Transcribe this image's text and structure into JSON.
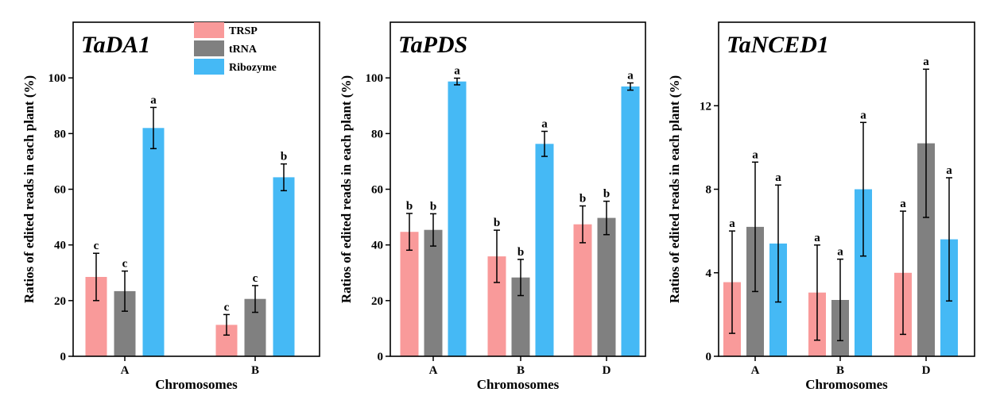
{
  "chart_data": [
    {
      "type": "bar",
      "title": "TaDA1",
      "xlabel": "Chromosomes",
      "ylabel": "Ratios of edited reads  in each plant (%)",
      "ylim": [
        0,
        120
      ],
      "yticks": [
        0,
        20,
        40,
        60,
        80,
        100
      ],
      "categories": [
        "A",
        "B"
      ],
      "legend": "top-right",
      "series": [
        {
          "name": "TRSP",
          "values": [
            28.5,
            11.3
          ],
          "errors": [
            8.5,
            3.7
          ],
          "labels": [
            "c",
            "c"
          ]
        },
        {
          "name": "tRNA",
          "values": [
            23.4,
            20.6
          ],
          "errors": [
            7.2,
            4.8
          ],
          "labels": [
            "c",
            "c"
          ]
        },
        {
          "name": "Ribozyme",
          "values": [
            82.0,
            64.3
          ],
          "errors": [
            7.4,
            4.8
          ],
          "labels": [
            "a",
            "b"
          ]
        }
      ]
    },
    {
      "type": "bar",
      "title": "TaPDS",
      "xlabel": "Chromosomes",
      "ylabel": "Ratios of edited reads  in each plant (%)",
      "ylim": [
        0,
        120
      ],
      "yticks": [
        0,
        20,
        40,
        60,
        80,
        100
      ],
      "categories": [
        "A",
        "B",
        "D"
      ],
      "series": [
        {
          "name": "TRSP",
          "values": [
            44.7,
            35.9,
            47.4
          ],
          "errors": [
            6.6,
            9.4,
            6.6
          ],
          "labels": [
            "b",
            "b",
            "b"
          ]
        },
        {
          "name": "tRNA",
          "values": [
            45.4,
            28.3,
            49.7
          ],
          "errors": [
            5.8,
            6.5,
            6.0
          ],
          "labels": [
            "b",
            "b",
            "b"
          ]
        },
        {
          "name": "Ribozyme",
          "values": [
            98.7,
            76.3,
            96.9
          ],
          "errors": [
            1.2,
            4.5,
            1.3
          ],
          "labels": [
            "a",
            "a",
            "a"
          ]
        }
      ]
    },
    {
      "type": "bar",
      "title": "TaNCED1",
      "xlabel": "Chromosomes",
      "ylabel": "Ratios of edited reads  in each plant (%)",
      "ylim": [
        0,
        16
      ],
      "yticks": [
        0,
        4,
        8,
        12
      ],
      "categories": [
        "A",
        "B",
        "D"
      ],
      "series": [
        {
          "name": "TRSP",
          "values": [
            3.55,
            3.05,
            4.0
          ],
          "errors": [
            2.45,
            2.28,
            2.95
          ],
          "labels": [
            "a",
            "a",
            "a"
          ]
        },
        {
          "name": "tRNA",
          "values": [
            6.2,
            2.7,
            10.2
          ],
          "errors": [
            3.1,
            1.95,
            3.55
          ],
          "labels": [
            "a",
            "a",
            "a"
          ]
        },
        {
          "name": "Ribozyme",
          "values": [
            5.4,
            8.0,
            5.6
          ],
          "errors": [
            2.8,
            3.2,
            2.95
          ],
          "labels": [
            "a",
            "a",
            "a"
          ]
        }
      ]
    }
  ],
  "colors": {
    "TRSP": "#f99a9a",
    "tRNA": "#808080",
    "Ribozyme": "#45b9f5"
  }
}
